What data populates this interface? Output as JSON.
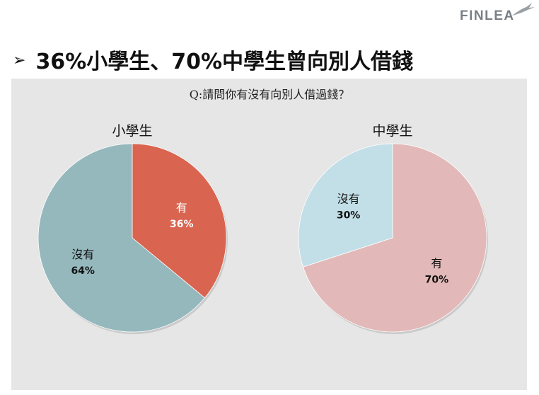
{
  "brand": {
    "logo_text": "FINLEA"
  },
  "slide": {
    "title": "36%小學生、70%中學生曾向別人借錢",
    "question": "Q:請問你有沒有向別人借過錢？"
  },
  "colors": {
    "primary_yes": "#d9644f",
    "primary_no": "#95b8bd",
    "secondary_yes": "#e2b9b8",
    "secondary_no": "#c2dfe7",
    "panel_bg": "#e6e6e6"
  },
  "chart_data": [
    {
      "type": "pie",
      "title": "小學生",
      "slices": [
        {
          "label": "有",
          "value": 36,
          "display": "36%",
          "color": "#d9644f",
          "label_color": "#ffffff"
        },
        {
          "label": "沒有",
          "value": 64,
          "display": "64%",
          "color": "#95b8bd",
          "label_color": "#111111"
        }
      ]
    },
    {
      "type": "pie",
      "title": "中學生",
      "slices": [
        {
          "label": "有",
          "value": 70,
          "display": "70%",
          "color": "#e2b9b8",
          "label_color": "#111111"
        },
        {
          "label": "沒有",
          "value": 30,
          "display": "30%",
          "color": "#c2dfe7",
          "label_color": "#111111"
        }
      ]
    }
  ]
}
